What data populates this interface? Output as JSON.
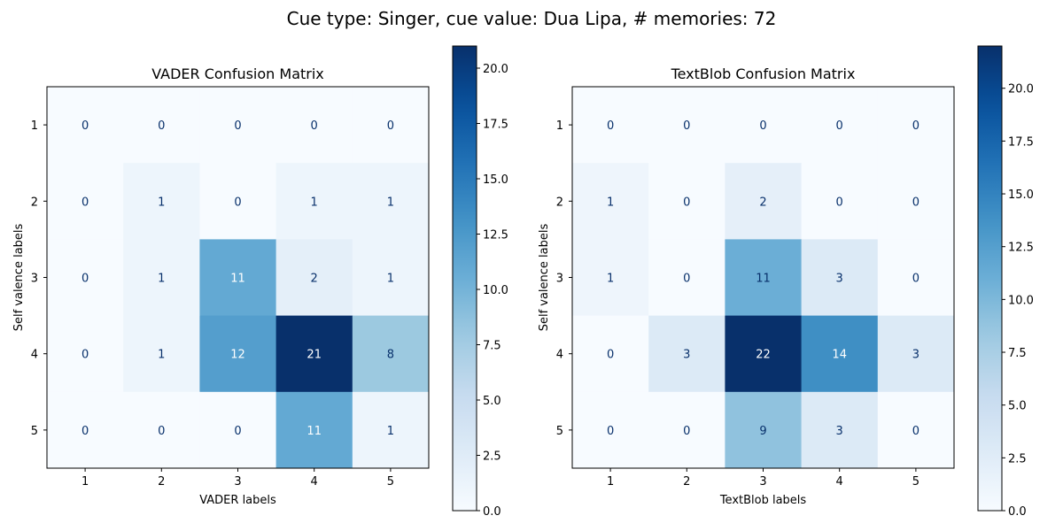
{
  "suptitle": "Cue type: Singer, cue value: Dua Lipa, # memories: 72",
  "chart_data": [
    {
      "type": "heatmap",
      "title": "VADER Confusion Matrix",
      "xlabel": "VADER labels",
      "ylabel": "Self valence labels",
      "x_ticks": [
        "1",
        "2",
        "3",
        "4",
        "5"
      ],
      "y_ticks": [
        "1",
        "2",
        "3",
        "4",
        "5"
      ],
      "matrix": [
        [
          0,
          0,
          0,
          0,
          0
        ],
        [
          0,
          1,
          0,
          1,
          1
        ],
        [
          0,
          1,
          11,
          2,
          1
        ],
        [
          0,
          1,
          12,
          21,
          8
        ],
        [
          0,
          0,
          0,
          11,
          1
        ]
      ],
      "colormap": "Blues",
      "colorbar": {
        "min": 0,
        "max": 21,
        "ticks": [
          "0.0",
          "2.5",
          "5.0",
          "7.5",
          "10.0",
          "12.5",
          "15.0",
          "17.5",
          "20.0"
        ]
      }
    },
    {
      "type": "heatmap",
      "title": "TextBlob Confusion Matrix",
      "xlabel": "TextBlob labels",
      "ylabel": "Self valence labels",
      "x_ticks": [
        "1",
        "2",
        "3",
        "4",
        "5"
      ],
      "y_ticks": [
        "1",
        "2",
        "3",
        "4",
        "5"
      ],
      "matrix": [
        [
          0,
          0,
          0,
          0,
          0
        ],
        [
          1,
          0,
          2,
          0,
          0
        ],
        [
          1,
          0,
          11,
          3,
          0
        ],
        [
          0,
          3,
          22,
          14,
          3
        ],
        [
          0,
          0,
          9,
          3,
          0
        ]
      ],
      "colormap": "Blues",
      "colorbar": {
        "min": 0,
        "max": 22,
        "ticks": [
          "0.0",
          "2.5",
          "5.0",
          "7.5",
          "10.0",
          "12.5",
          "15.0",
          "17.5",
          "20.0"
        ]
      }
    }
  ]
}
